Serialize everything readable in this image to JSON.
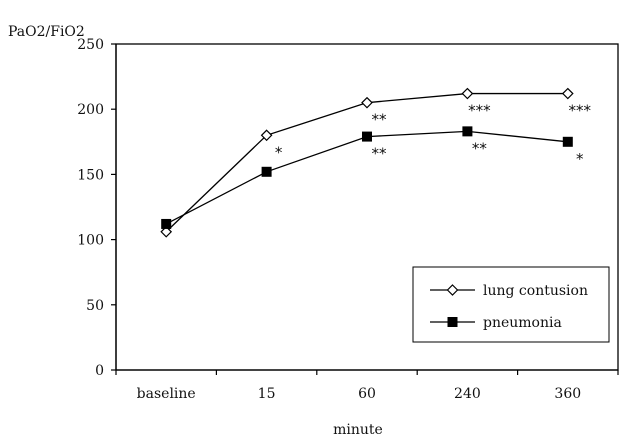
{
  "chart_data": {
    "type": "line",
    "ylabel": "PaO2/FiO2",
    "xlabel": "minute",
    "categories": [
      "baseline",
      "15",
      "60",
      "240",
      "360"
    ],
    "ylim": [
      0,
      250
    ],
    "yticks": [
      0,
      50,
      100,
      150,
      200,
      250
    ],
    "grid": false,
    "legend_position": "bottom-right",
    "series": [
      {
        "name": "lung contusion",
        "values": [
          106,
          180,
          205,
          212,
          212
        ],
        "marker": "open-diamond",
        "color": "#000000"
      },
      {
        "name": "pneumonia",
        "values": [
          112,
          152,
          179,
          183,
          175
        ],
        "marker": "filled-square",
        "color": "#000000"
      }
    ],
    "annotations": [
      {
        "category": "15",
        "value": 180,
        "text": "*"
      },
      {
        "category": "60",
        "value": 205,
        "text": "**"
      },
      {
        "category": "60",
        "value": 179,
        "text": "**"
      },
      {
        "category": "240",
        "value": 212,
        "text": "***"
      },
      {
        "category": "240",
        "value": 183,
        "text": "**"
      },
      {
        "category": "360",
        "value": 212,
        "text": "***"
      },
      {
        "category": "360",
        "value": 175,
        "text": "*"
      }
    ]
  }
}
